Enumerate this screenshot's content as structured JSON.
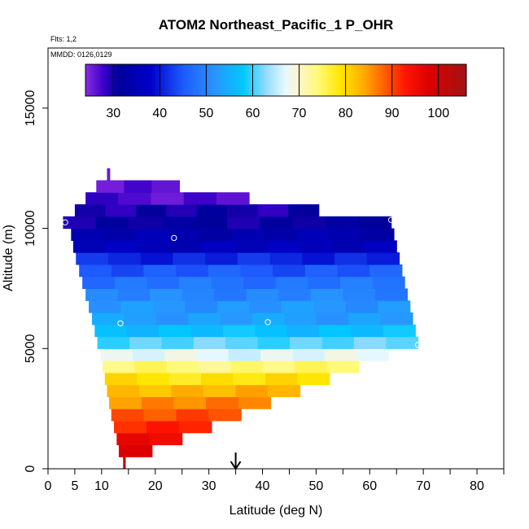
{
  "chart_data": {
    "type": "heatmap",
    "title": "ATOM2 Northeast_Pacific_1 P_OHR",
    "flights_label": "Flts: 1,2",
    "mmdd_label": "MMDD: 0126,0129",
    "xlabel": "Latitude (deg N)",
    "ylabel": "Altitude (m)",
    "xlim": [
      0,
      85
    ],
    "ylim": [
      0,
      17500
    ],
    "x_ticks": [
      0,
      5,
      10,
      20,
      30,
      40,
      50,
      60,
      70,
      80
    ],
    "x_minor_ticks": [
      15,
      25,
      35,
      45,
      55,
      65,
      75,
      85
    ],
    "y_ticks": [
      0,
      5000,
      10000,
      15000
    ],
    "colorbar": {
      "range": [
        24,
        106
      ],
      "ticks": [
        30,
        40,
        50,
        60,
        70,
        80,
        90,
        100
      ],
      "stops": [
        {
          "v": 24,
          "c": "#8a2be2"
        },
        {
          "v": 28,
          "c": "#3a00c8"
        },
        {
          "v": 31,
          "c": "#00009a"
        },
        {
          "v": 38,
          "c": "#0000c8"
        },
        {
          "v": 45,
          "c": "#1e5aff"
        },
        {
          "v": 52,
          "c": "#2896ff"
        },
        {
          "v": 58,
          "c": "#00c8ff"
        },
        {
          "v": 63,
          "c": "#96dcff"
        },
        {
          "v": 67,
          "c": "#e6f8ff"
        },
        {
          "v": 70,
          "c": "#fff5c8"
        },
        {
          "v": 74,
          "c": "#fffa78"
        },
        {
          "v": 79,
          "c": "#ffe600"
        },
        {
          "v": 84,
          "c": "#ffaa00"
        },
        {
          "v": 88,
          "c": "#ff6400"
        },
        {
          "v": 93,
          "c": "#ff1400"
        },
        {
          "v": 98,
          "c": "#dc0000"
        },
        {
          "v": 106,
          "c": "#a01414"
        }
      ]
    },
    "layers": [
      {
        "alt": 250,
        "lat_min": 14,
        "lat_max": 14.4,
        "value": 102
      },
      {
        "alt": 750,
        "lat_min": 13.2,
        "lat_max": 19.4,
        "value": 98
      },
      {
        "alt": 1250,
        "lat_min": 12.8,
        "lat_max": 25,
        "value": 95
      },
      {
        "alt": 1750,
        "lat_min": 12.3,
        "lat_max": 30.5,
        "value": 92
      },
      {
        "alt": 2250,
        "lat_min": 11.8,
        "lat_max": 36,
        "value": 89
      },
      {
        "alt": 2750,
        "lat_min": 11.4,
        "lat_max": 41.5,
        "value": 86
      },
      {
        "alt": 3250,
        "lat_min": 11,
        "lat_max": 47,
        "value": 83
      },
      {
        "alt": 3750,
        "lat_min": 10.6,
        "lat_max": 52.5,
        "value": 79
      },
      {
        "alt": 4250,
        "lat_min": 10.2,
        "lat_max": 58,
        "value": 74
      },
      {
        "alt": 4750,
        "lat_min": 9.8,
        "lat_max": 63.5,
        "value": 67
      },
      {
        "alt": 5250,
        "lat_min": 9.2,
        "lat_max": 69,
        "value": 61
      },
      {
        "alt": 5750,
        "lat_min": 8.7,
        "lat_max": 68.5,
        "value": 57
      },
      {
        "alt": 6250,
        "lat_min": 8.2,
        "lat_max": 68,
        "value": 53
      },
      {
        "alt": 6750,
        "lat_min": 7.6,
        "lat_max": 67.5,
        "value": 52
      },
      {
        "alt": 7250,
        "lat_min": 7,
        "lat_max": 67,
        "value": 50
      },
      {
        "alt": 7750,
        "lat_min": 6.4,
        "lat_max": 66.5,
        "value": 48
      },
      {
        "alt": 8250,
        "lat_min": 5.8,
        "lat_max": 66,
        "value": 45
      },
      {
        "alt": 8750,
        "lat_min": 5.2,
        "lat_max": 65.5,
        "value": 41
      },
      {
        "alt": 9250,
        "lat_min": 4.7,
        "lat_max": 65,
        "value": 36
      },
      {
        "alt": 9750,
        "lat_min": 4.3,
        "lat_max": 64.5,
        "value": 34
      },
      {
        "alt": 10250,
        "lat_min": 2.8,
        "lat_max": 64,
        "value": 31
      },
      {
        "alt": 10750,
        "lat_min": 5,
        "lat_max": 50.5,
        "value": 30
      },
      {
        "alt": 11250,
        "lat_min": 7,
        "lat_max": 37.5,
        "value": 27
      },
      {
        "alt": 11750,
        "lat_min": 9,
        "lat_max": 24.5,
        "value": 26
      },
      {
        "alt": 12250,
        "lat_min": 11,
        "lat_max": 11.5,
        "value": 25
      }
    ],
    "sample_points": [
      {
        "lat": 3.2,
        "alt": 10250
      },
      {
        "lat": 23.5,
        "alt": 9600
      },
      {
        "lat": 64,
        "alt": 10350
      },
      {
        "lat": 13.5,
        "alt": 6050
      },
      {
        "lat": 41,
        "alt": 6100
      },
      {
        "lat": 69,
        "alt": 5150
      }
    ],
    "marker": {
      "lat": 35,
      "description": "arrow-down"
    }
  }
}
